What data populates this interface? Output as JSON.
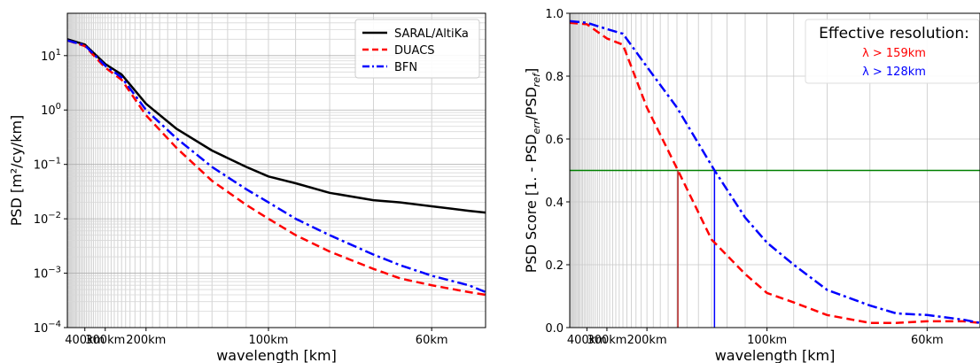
{
  "chart_data": [
    {
      "type": "line",
      "xlabel": "wavelength [km]",
      "ylabel": "PSD [m²/cy/km]",
      "yscale": "log",
      "xscale": "reciprocal",
      "xlim": [
        560,
        53
      ],
      "ylim": [
        0.0001,
        60
      ],
      "x_ticks": [
        400,
        300,
        200,
        100,
        60
      ],
      "x_tick_labels": [
        "400km",
        "300km",
        "200km",
        "100km",
        "60km"
      ],
      "y_ticks": [
        0.0001,
        0.001,
        0.01,
        0.1,
        1,
        10
      ],
      "y_tick_labels": [
        "10−4",
        "10−3",
        "10−2",
        "10−1",
        "10^0",
        "10^1"
      ],
      "grid": true,
      "legend_position": "top-right",
      "series": [
        {
          "name": "SARAL/AltiKa",
          "color": "#000000",
          "dash": "solid",
          "x": [
            560,
            400,
            300,
            250,
            200,
            160,
            130,
            110,
            100,
            90,
            80,
            70,
            65,
            60,
            55,
            53
          ],
          "y": [
            20,
            16,
            7,
            4.5,
            1.3,
            0.45,
            0.18,
            0.09,
            0.06,
            0.045,
            0.03,
            0.022,
            0.02,
            0.017,
            0.014,
            0.013
          ]
        },
        {
          "name": "DUACS",
          "color": "#ff0000",
          "dash": "dashed",
          "x": [
            560,
            400,
            300,
            250,
            200,
            160,
            130,
            110,
            100,
            90,
            80,
            70,
            65,
            60,
            55,
            53
          ],
          "y": [
            19,
            15,
            6,
            3.6,
            0.8,
            0.2,
            0.05,
            0.018,
            0.01,
            0.005,
            0.0025,
            0.0012,
            0.0008,
            0.0006,
            0.00045,
            0.0004
          ]
        },
        {
          "name": "BFN",
          "color": "#0000ff",
          "dash": "dashdot",
          "x": [
            560,
            400,
            300,
            250,
            200,
            160,
            130,
            110,
            100,
            90,
            80,
            70,
            65,
            60,
            55,
            53
          ],
          "y": [
            19,
            15.5,
            6.5,
            4,
            1,
            0.3,
            0.09,
            0.035,
            0.02,
            0.01,
            0.005,
            0.0022,
            0.0014,
            0.0009,
            0.0006,
            0.00045
          ]
        }
      ]
    },
    {
      "type": "line",
      "xlabel": "wavelength [km]",
      "ylabel": "PSD Score [1. - PSD_err/PSD_ref]",
      "ylabel_parts": {
        "base": "PSD Score [1. - PSD",
        "sub1": "err",
        "mid": "/PSD",
        "sub2": "ref",
        "end": "]"
      },
      "xscale": "reciprocal",
      "xlim": [
        560,
        53
      ],
      "ylim": [
        0.0,
        1.0
      ],
      "x_ticks": [
        400,
        300,
        200,
        100,
        60
      ],
      "x_tick_labels": [
        "400km",
        "300km",
        "200km",
        "100km",
        "60km"
      ],
      "y_ticks": [
        0.0,
        0.2,
        0.4,
        0.6,
        0.8,
        1.0
      ],
      "y_tick_labels": [
        "0.0",
        "0.2",
        "0.4",
        "0.6",
        "0.8",
        "1.0"
      ],
      "grid": true,
      "legend_position": "top-right",
      "legend_title": "Effective resolution:",
      "annotations": [
        {
          "text": "λ > 159km",
          "color": "#ff0000"
        },
        {
          "text": "λ > 128km",
          "color": "#0000ff"
        }
      ],
      "threshold": {
        "y": 0.5,
        "color": "#008000"
      },
      "resolution_markers": [
        {
          "x": 159,
          "color": "#b22222"
        },
        {
          "x": 128,
          "color": "#0000ff"
        }
      ],
      "series": [
        {
          "color": "#ff0000",
          "dash": "dashed",
          "x": [
            560,
            400,
            300,
            250,
            200,
            159,
            130,
            110,
            100,
            90,
            80,
            70,
            65,
            60,
            55,
            53
          ],
          "y": [
            0.97,
            0.965,
            0.92,
            0.9,
            0.7,
            0.5,
            0.28,
            0.17,
            0.11,
            0.08,
            0.04,
            0.015,
            0.015,
            0.02,
            0.02,
            0.015
          ]
        },
        {
          "color": "#0000ff",
          "dash": "dashdot",
          "x": [
            560,
            400,
            300,
            250,
            200,
            160,
            128,
            110,
            100,
            90,
            80,
            70,
            65,
            60,
            55,
            53
          ],
          "y": [
            0.975,
            0.97,
            0.95,
            0.935,
            0.83,
            0.7,
            0.5,
            0.35,
            0.27,
            0.2,
            0.12,
            0.07,
            0.045,
            0.04,
            0.025,
            0.015
          ]
        }
      ]
    }
  ]
}
